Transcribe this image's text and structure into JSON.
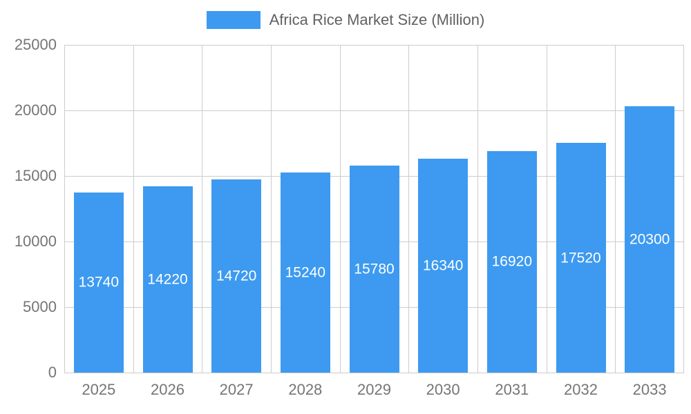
{
  "legend": {
    "label": "Africa Rice Market Size (Million)"
  },
  "colors": {
    "bar": "#3D9AF0",
    "grid": "#cccccc",
    "axis_text": "#757575",
    "legend_text": "#616161",
    "bar_label_text": "#ffffff",
    "background": "#ffffff"
  },
  "chart_data": {
    "type": "bar",
    "title": "Africa Rice Market Size (Million)",
    "categories": [
      "2025",
      "2026",
      "2027",
      "2028",
      "2029",
      "2030",
      "2031",
      "2032",
      "2033"
    ],
    "values": [
      13740,
      14220,
      14720,
      15240,
      15780,
      16340,
      16920,
      17520,
      20300
    ],
    "xlabel": "",
    "ylabel": "",
    "ylim": [
      0,
      25000
    ],
    "ytick_interval": 5000,
    "yticks": [
      0,
      5000,
      10000,
      15000,
      20000,
      25000
    ],
    "grid": true,
    "legend_position": "top",
    "value_labels": "inside-center-white"
  }
}
